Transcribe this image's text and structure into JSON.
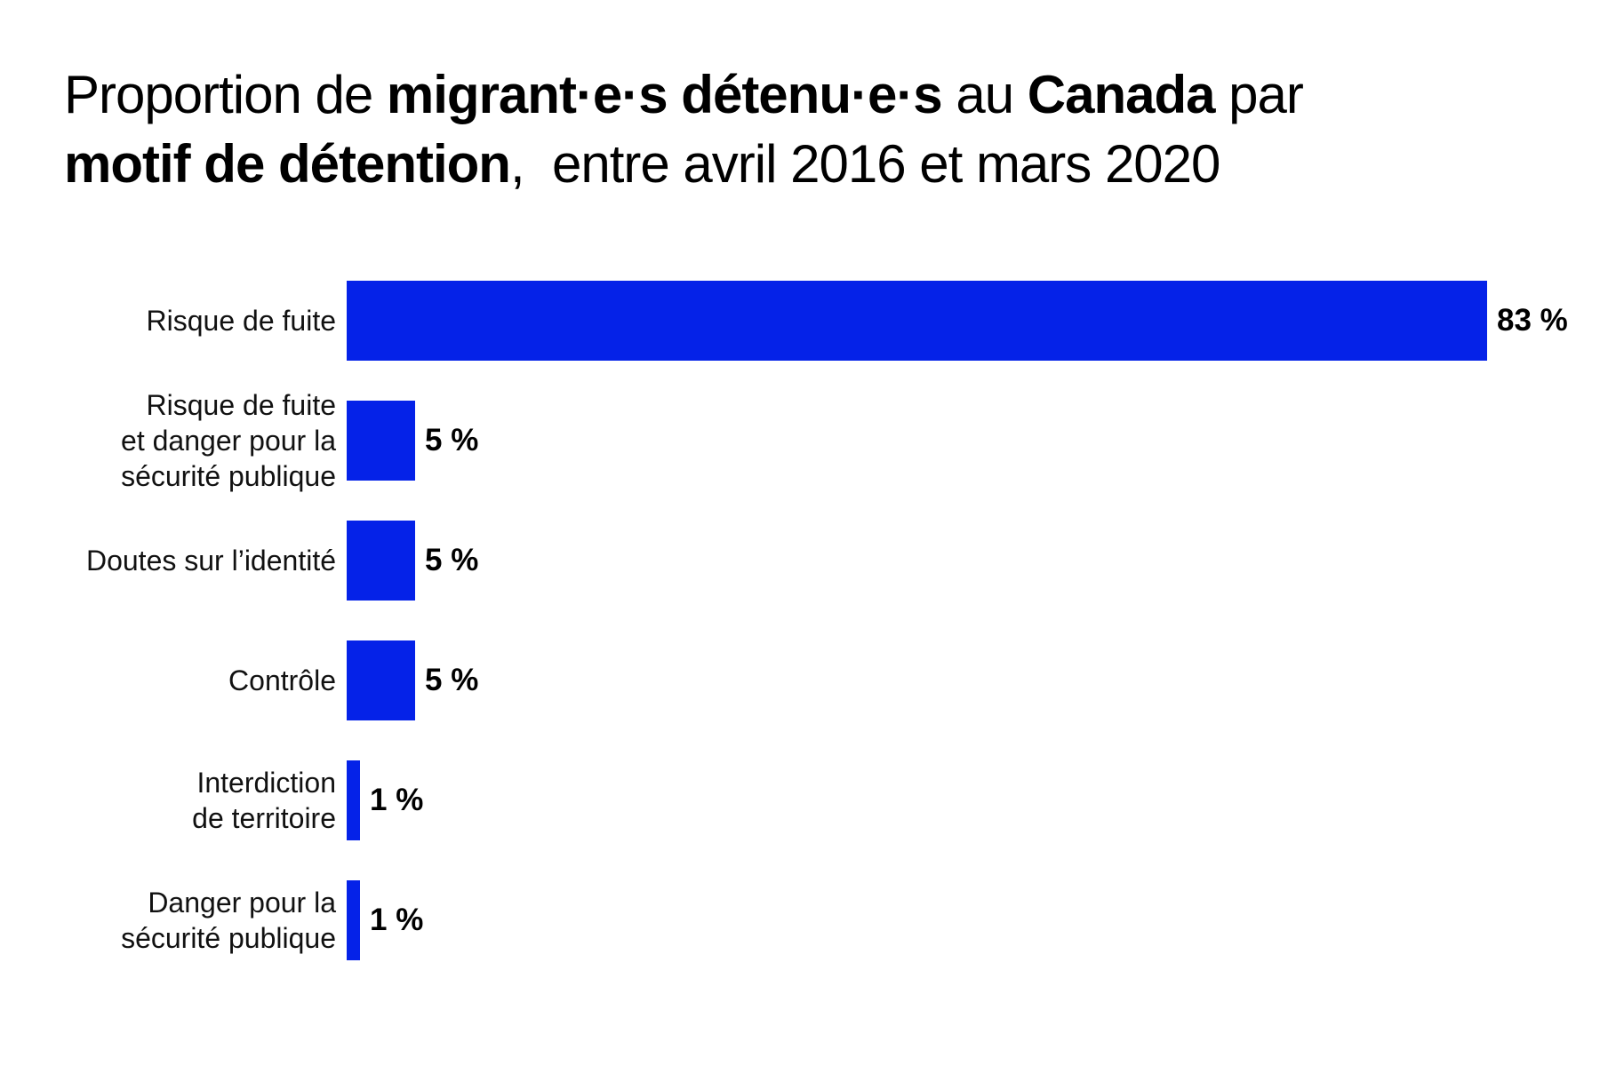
{
  "title": {
    "full_text": "Proportion de migrant·e·s détenu·e·s au Canada par motif de détention,  entre avril 2016 et mars 2020",
    "lines": [
      {
        "segments": [
          {
            "text": "Proportion de ",
            "bold": false
          },
          {
            "text": "migrant·e·s détenu·e·s",
            "bold": true
          },
          {
            "text": " au ",
            "bold": false
          },
          {
            "text": "Canada",
            "bold": true
          },
          {
            "text": " par",
            "bold": false
          }
        ]
      },
      {
        "segments": [
          {
            "text": "motif de détention",
            "bold": true
          },
          {
            "text": ",  entre avril 2016 et mars 2020",
            "bold": false
          }
        ]
      }
    ]
  },
  "chart_data": {
    "type": "bar",
    "orientation": "horizontal",
    "title": "Proportion de migrant·e·s détenu·e·s au Canada par motif de détention, entre avril 2016 et mars 2020",
    "categories": [
      "Risque de fuite",
      "Risque de fuite et danger pour la sécurité publique",
      "Doutes sur l’identité",
      "Contrôle",
      "Interdiction de territoire",
      "Danger pour la sécurité publique"
    ],
    "values": [
      83,
      5,
      5,
      5,
      1,
      1
    ],
    "value_labels": [
      "83 %",
      "5 %",
      "5 %",
      "5 %",
      "1 %",
      "1 %"
    ],
    "unit": "%",
    "xlim": [
      0,
      83
    ],
    "grid": false,
    "legend": false,
    "bar_color": "#0522e8",
    "bars": [
      {
        "label_lines": [
          "Risque de fuite"
        ],
        "value": 83,
        "value_label": "83 %"
      },
      {
        "label_lines": [
          "Risque de fuite",
          "et danger pour la",
          "sécurité publique"
        ],
        "value": 5,
        "value_label": "5 %"
      },
      {
        "label_lines": [
          "Doutes sur l’identité"
        ],
        "value": 5,
        "value_label": "5 %"
      },
      {
        "label_lines": [
          "Contrôle"
        ],
        "value": 5,
        "value_label": "5 %"
      },
      {
        "label_lines": [
          "Interdiction",
          "de territoire"
        ],
        "value": 1,
        "value_label": "1 %"
      },
      {
        "label_lines": [
          "Danger pour la",
          "sécurité publique"
        ],
        "value": 1,
        "value_label": "1 %"
      }
    ]
  },
  "colors": {
    "bar": "#0522e8",
    "text": "#000000",
    "background": "#ffffff"
  }
}
